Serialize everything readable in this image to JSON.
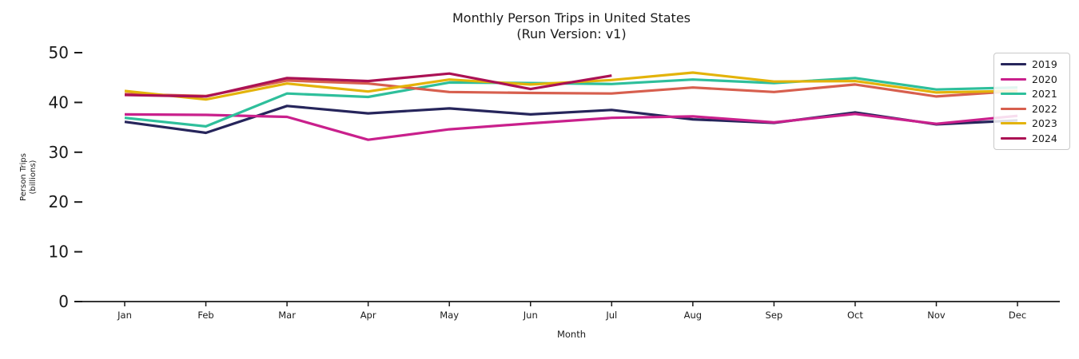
{
  "title": {
    "line1": "Monthly Person Trips in United States",
    "line2": "(Run Version: v1)"
  },
  "axes": {
    "xlabel": "Month",
    "ylabel_line1": "Person Trips",
    "ylabel_line2": "(billions)"
  },
  "chart_data": {
    "type": "line",
    "title": "Monthly Person Trips in United States",
    "subtitle": "(Run Version: v1)",
    "xlabel": "Month",
    "ylabel": "Person Trips (billions)",
    "categories": [
      "Jan",
      "Feb",
      "Mar",
      "Apr",
      "May",
      "Jun",
      "Jul",
      "Aug",
      "Sep",
      "Oct",
      "Nov",
      "Dec"
    ],
    "ylim": [
      0,
      50
    ],
    "yticks": [
      0,
      10,
      20,
      30,
      40,
      50
    ],
    "grid": false,
    "legend_position": "upper right",
    "axis_color": "#1a1a1a",
    "series": [
      {
        "name": "2019",
        "color": "#26255b",
        "values": [
          36.1,
          33.9,
          39.3,
          37.8,
          38.8,
          37.6,
          38.5,
          36.6,
          35.9,
          38.0,
          35.6,
          36.4
        ]
      },
      {
        "name": "2020",
        "color": "#c9208c",
        "values": [
          37.6,
          37.5,
          37.1,
          32.5,
          34.6,
          35.8,
          36.9,
          37.2,
          36.0,
          37.7,
          35.7,
          37.3
        ]
      },
      {
        "name": "2021",
        "color": "#2ebf9b",
        "values": [
          36.9,
          35.2,
          41.8,
          41.1,
          44.0,
          43.9,
          43.7,
          44.6,
          43.9,
          44.9,
          42.6,
          43.0
        ]
      },
      {
        "name": "2022",
        "color": "#d75f4e",
        "values": [
          41.7,
          41.3,
          44.4,
          43.8,
          42.1,
          41.9,
          41.8,
          43.0,
          42.1,
          43.6,
          41.2,
          42.3
        ]
      },
      {
        "name": "2023",
        "color": "#e3b30a",
        "values": [
          42.3,
          40.6,
          43.8,
          42.2,
          44.6,
          43.6,
          44.5,
          46.0,
          44.2,
          44.3,
          42.0,
          42.3
        ]
      },
      {
        "name": "2024",
        "color": "#ab1154",
        "values": [
          41.5,
          41.2,
          44.9,
          44.3,
          45.8,
          42.7,
          45.4
        ]
      }
    ]
  }
}
